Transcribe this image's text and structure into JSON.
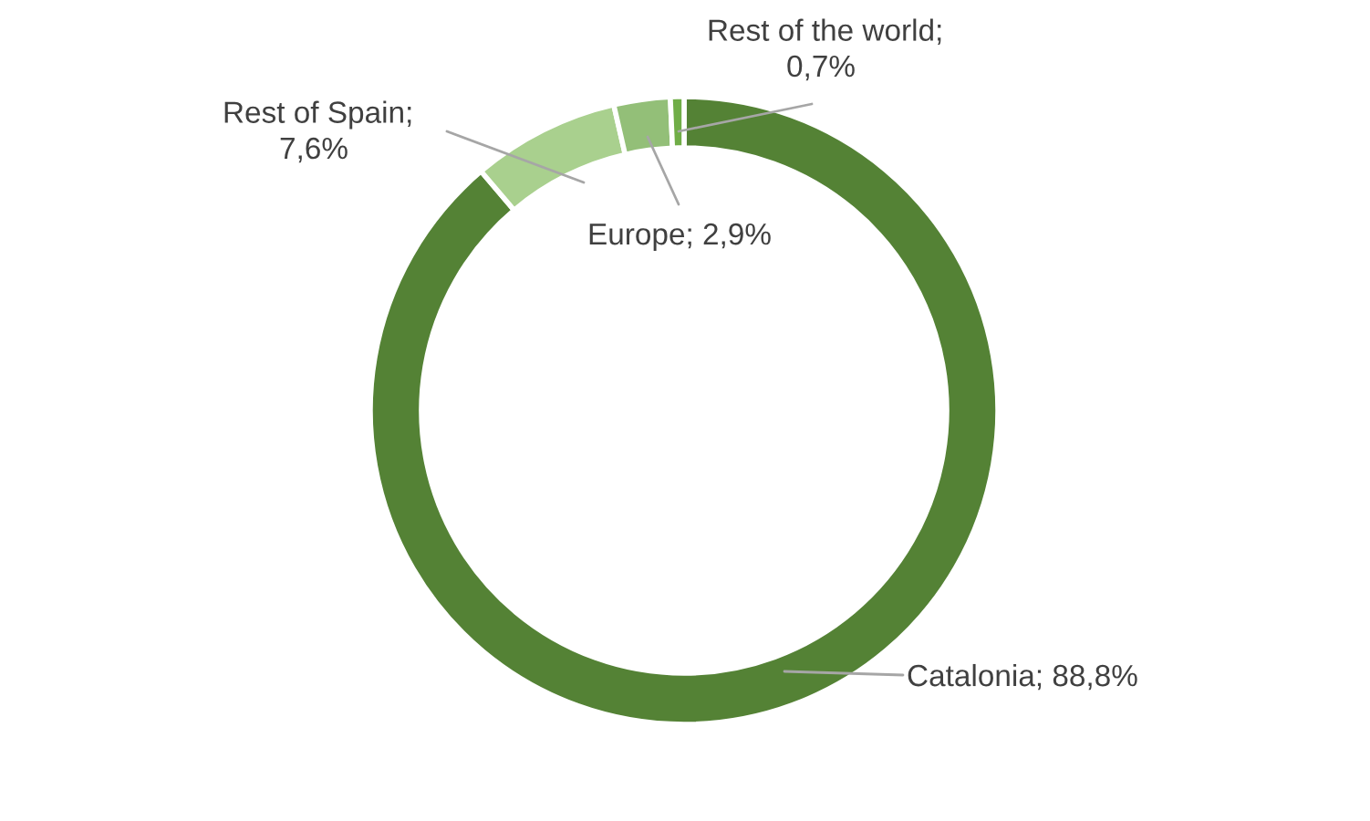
{
  "chart_data": {
    "type": "donut",
    "categories": [
      "Catalonia",
      "Rest of Spain",
      "Europe",
      "Rest of the world"
    ],
    "values": [
      88.8,
      7.6,
      2.9,
      0.7
    ],
    "colors": [
      "#548235",
      "#a9d08e",
      "#93bf78",
      "#70ad47"
    ],
    "value_labels": [
      "; 88,8%",
      ";\n7,6%",
      "; 2,9%",
      ";\n0,7%"
    ],
    "legend": false
  }
}
